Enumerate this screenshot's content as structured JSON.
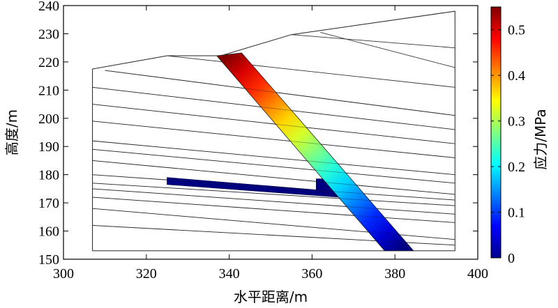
{
  "chart_data": {
    "type": "heatmap",
    "xlabel": "水平距离/m",
    "ylabel": "高度/m",
    "xlim": [
      300,
      400
    ],
    "ylim": [
      150,
      240
    ],
    "xticks": [
      "300",
      "320",
      "340",
      "360",
      "380",
      "400"
    ],
    "yticks": [
      "150",
      "160",
      "170",
      "180",
      "190",
      "200",
      "210",
      "220",
      "230",
      "240"
    ],
    "colorbar": {
      "label": "应力/MPa",
      "range": [
        0,
        0.55
      ],
      "ticks": [
        "0",
        "0.1",
        "0.2",
        "0.3",
        "0.4",
        "0.5"
      ],
      "colormap": "jet"
    },
    "slope_outline": [
      [
        307,
        153
      ],
      [
        307,
        217.5
      ],
      [
        325,
        222.2
      ],
      [
        338,
        222.2
      ],
      [
        355,
        229.7
      ],
      [
        394.5,
        238
      ],
      [
        394.5,
        153
      ]
    ],
    "rock_layers": [
      [
        [
          310,
          217
        ],
        [
          394.5,
          201
        ]
      ],
      [
        [
          307,
          211
        ],
        [
          394.5,
          196
        ]
      ],
      [
        [
          307,
          205
        ],
        [
          394.5,
          191
        ]
      ],
      [
        [
          307,
          199
        ],
        [
          394.5,
          186
        ]
      ],
      [
        [
          307,
          192
        ],
        [
          394.5,
          180
        ]
      ],
      [
        [
          307,
          189
        ],
        [
          394.5,
          177
        ]
      ],
      [
        [
          307,
          185
        ],
        [
          394.5,
          173
        ]
      ],
      [
        [
          307,
          180
        ],
        [
          394.5,
          171
        ]
      ],
      [
        [
          307,
          177
        ],
        [
          394.5,
          169
        ]
      ],
      [
        [
          307,
          175
        ],
        [
          394.5,
          166
        ]
      ],
      [
        [
          307,
          172
        ],
        [
          394.5,
          163
        ]
      ],
      [
        [
          307,
          168
        ],
        [
          394.5,
          157
        ]
      ],
      [
        [
          307,
          162
        ],
        [
          394.5,
          155
        ]
      ],
      [
        [
          325,
          222.2
        ],
        [
          394.5,
          211
        ]
      ],
      [
        [
          355,
          229.7
        ],
        [
          394.5,
          225
        ]
      ],
      [
        [
          362,
          230.5
        ],
        [
          394.5,
          218
        ]
      ]
    ],
    "stress_band": {
      "top_left": [
        337,
        222.2
      ],
      "top_right": [
        343,
        223.2
      ],
      "bottom_left": [
        377.5,
        153
      ],
      "bottom_right": [
        384.5,
        153
      ],
      "stress_top": 0.55,
      "stress_bottom": 0.0
    },
    "structures": [
      {
        "polygon": [
          [
            325,
            179
          ],
          [
            362,
            174.5
          ],
          [
            369,
            174.5
          ],
          [
            371,
            171.5
          ],
          [
            325,
            176.5
          ]
        ],
        "stress": 0.0
      },
      {
        "polygon": [
          [
            361,
            178.5
          ],
          [
            364,
            178.5
          ],
          [
            370,
            171
          ],
          [
            361,
            174.5
          ]
        ],
        "stress": 0.0
      }
    ]
  }
}
